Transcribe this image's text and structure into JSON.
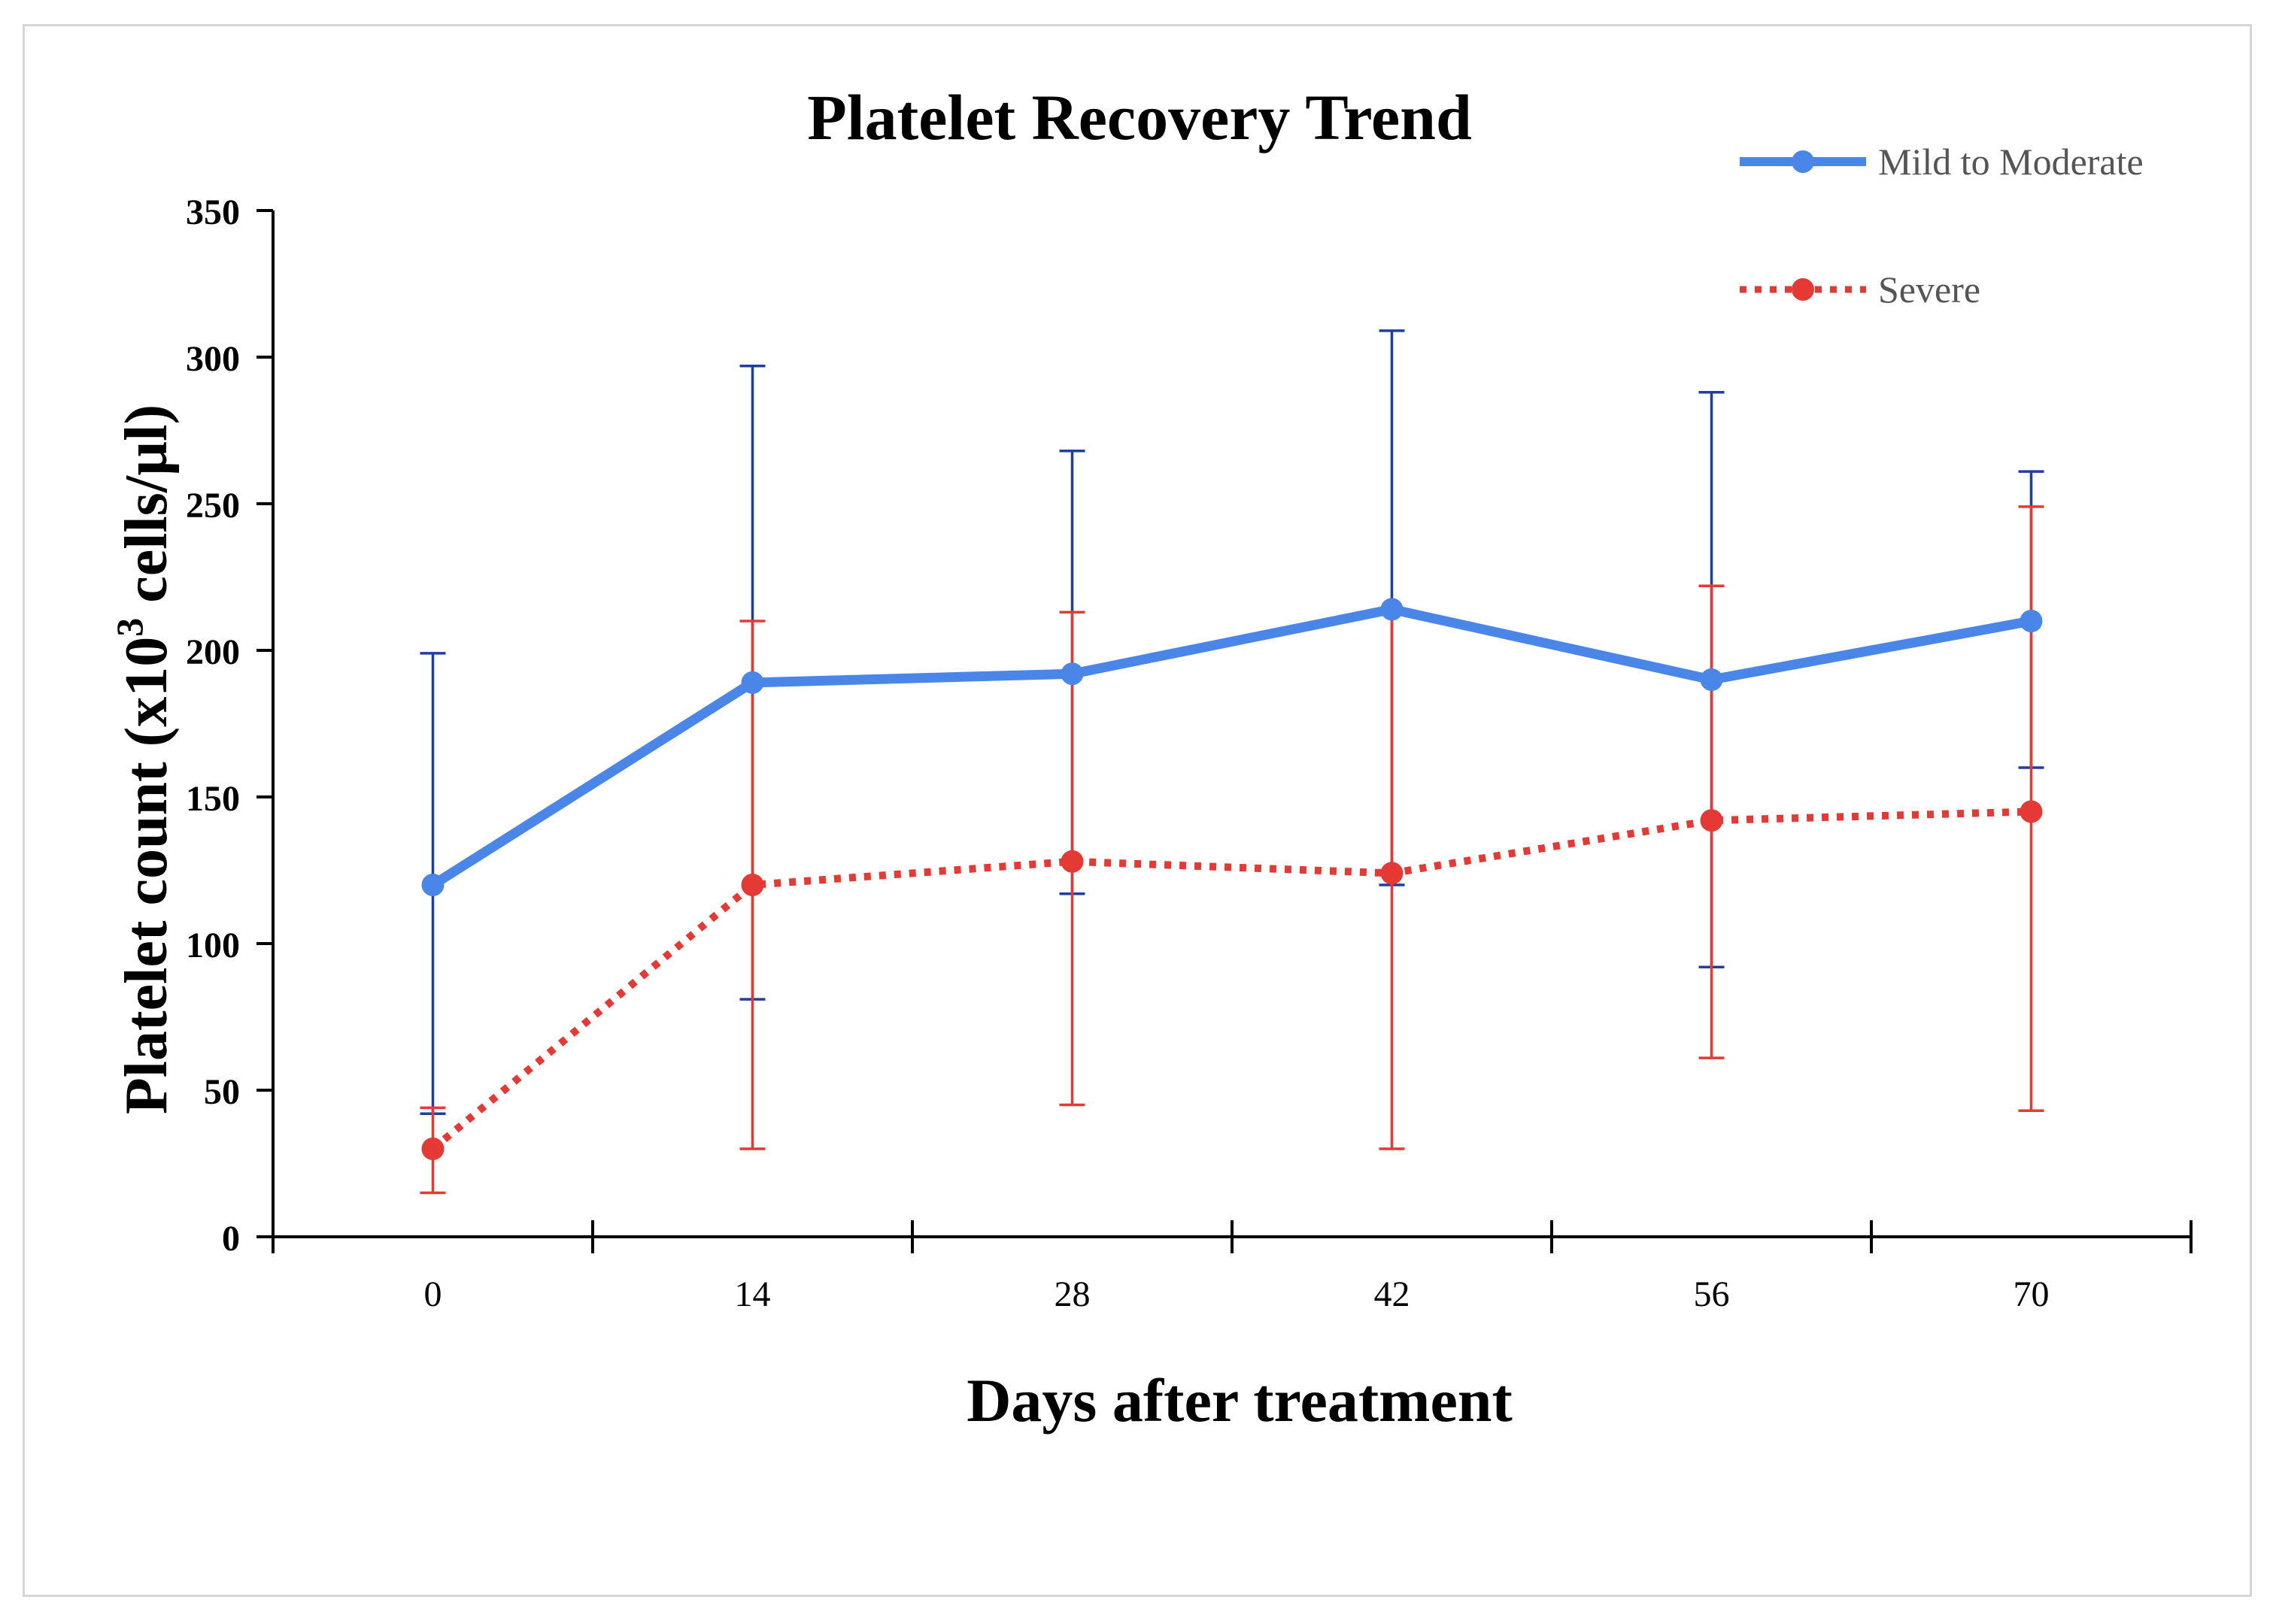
{
  "chart_data": {
    "type": "line",
    "title": "Platelet Recovery Trend",
    "xlabel": "Days after treatment",
    "ylabel": {
      "main": "Platelet count (x10",
      "superscript": "3",
      "rest": " cells/µl)"
    },
    "x": [
      0,
      14,
      28,
      42,
      56,
      70
    ],
    "x_tick_labels": [
      "0",
      "14",
      "28",
      "42",
      "56",
      "70"
    ],
    "ylim": [
      0,
      350
    ],
    "y_ticks": [
      0,
      50,
      100,
      150,
      200,
      250,
      300,
      350
    ],
    "y_tick_labels": [
      "0",
      "50",
      "100",
      "150",
      "200",
      "250",
      "300",
      "350"
    ],
    "grid": false,
    "legend_position": "top-right",
    "series": [
      {
        "name": "Mild to Moderate",
        "color": "#4a86e8",
        "error_color": "#1f3f9e",
        "line_style": "solid",
        "values": [
          120,
          189,
          192,
          214,
          190,
          210
        ],
        "error_low": [
          42,
          81,
          117,
          120,
          92,
          160
        ],
        "error_high": [
          199,
          297,
          268,
          309,
          288,
          261
        ]
      },
      {
        "name": "Severe",
        "color": "#e53935",
        "error_color": "#e53935",
        "line_style": "dotted",
        "values": [
          30,
          120,
          128,
          124,
          142,
          145
        ],
        "error_low": [
          15,
          30,
          45,
          30,
          61,
          43
        ],
        "error_high": [
          44,
          210,
          213,
          214,
          222,
          249
        ]
      }
    ]
  }
}
